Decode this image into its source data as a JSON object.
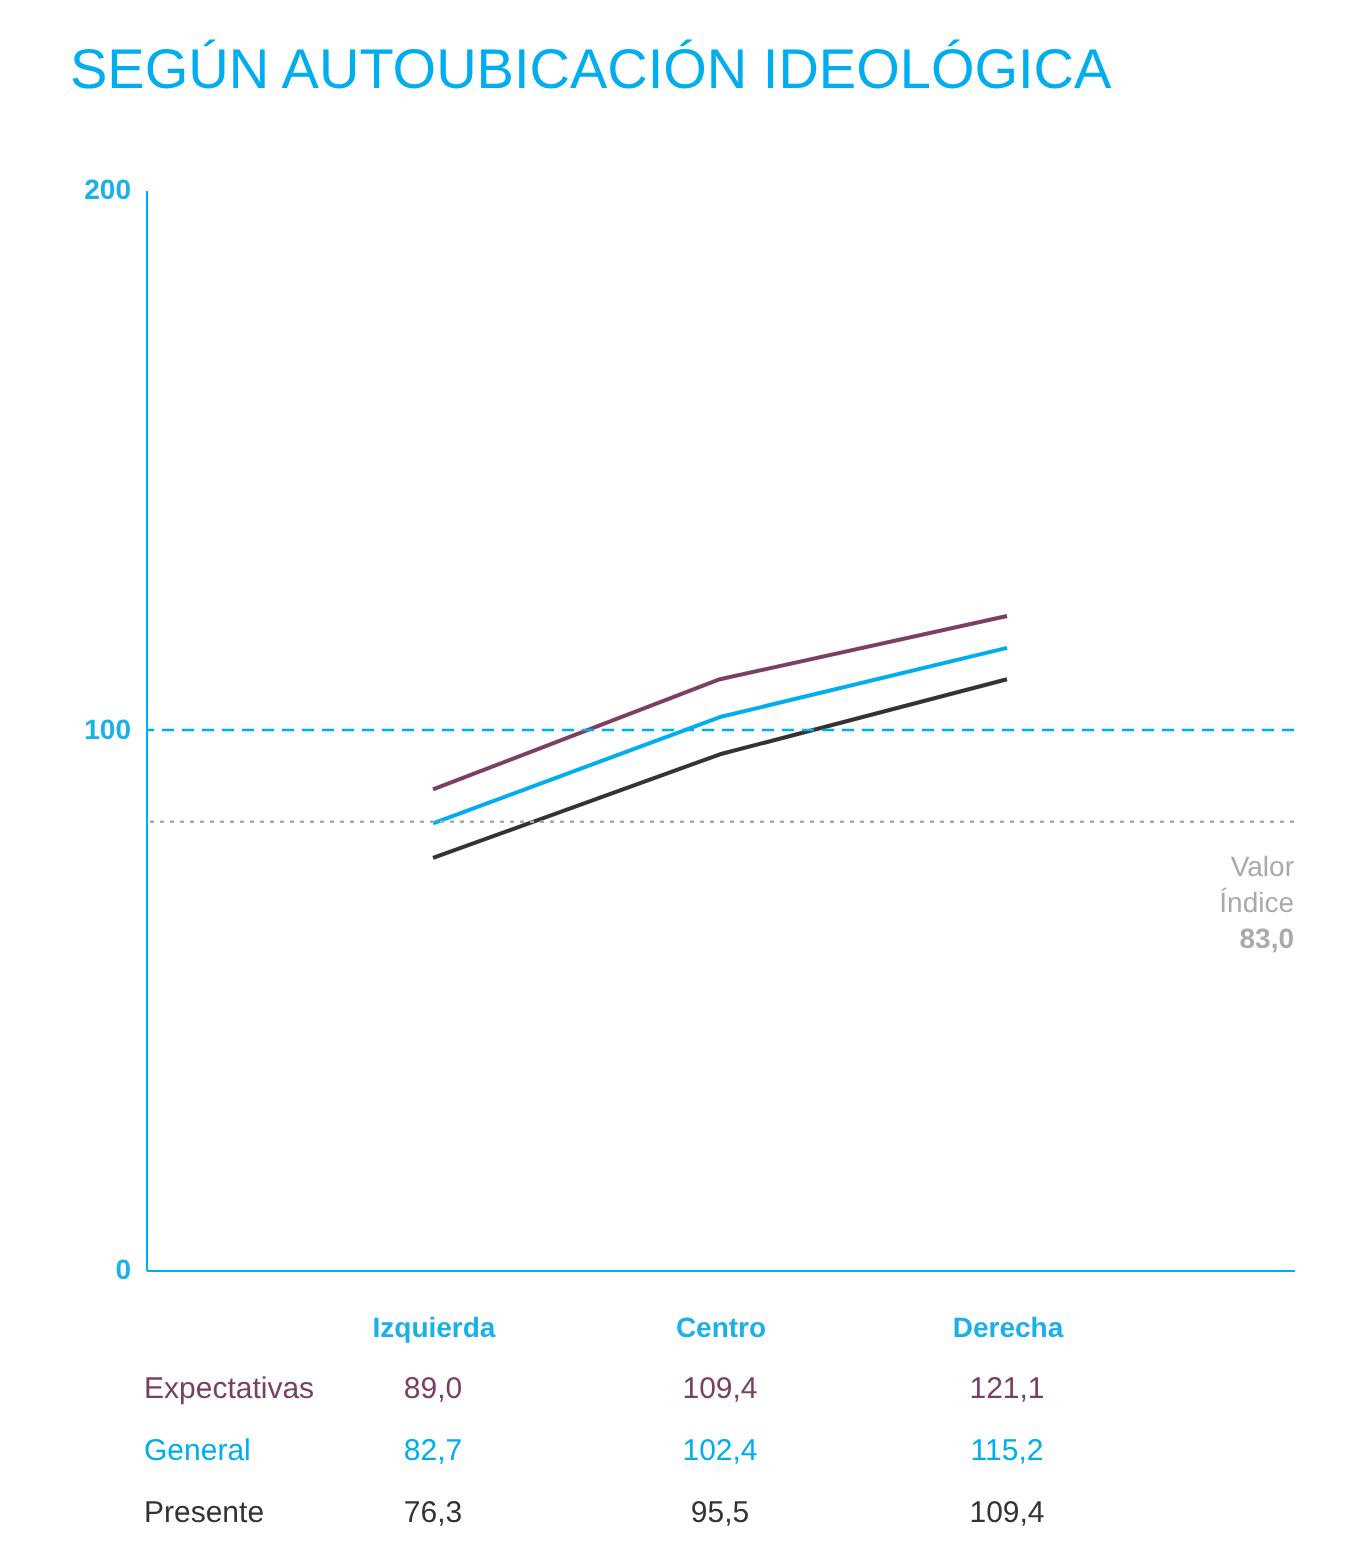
{
  "chart_data": {
    "type": "line",
    "title": "SEGÚN AUTOUBICACIÓN IDEOLÓGICA",
    "categories": [
      "Izquierda",
      "Centro",
      "Derecha"
    ],
    "series": [
      {
        "name": "Expectativas",
        "color": "#7b3f63",
        "values": [
          89.0,
          109.4,
          121.1
        ],
        "value_labels": [
          "89,0",
          "109,4",
          "121,1"
        ]
      },
      {
        "name": "General",
        "color": "#00aeef",
        "values": [
          82.7,
          102.4,
          115.2
        ],
        "value_labels": [
          "82,7",
          "102,4",
          "115,2"
        ]
      },
      {
        "name": "Presente",
        "color": "#333333",
        "values": [
          76.3,
          95.5,
          109.4
        ],
        "value_labels": [
          "76,3",
          "95,5",
          "109,4"
        ]
      }
    ],
    "ylim": [
      0,
      200
    ],
    "yticks": [
      0,
      100,
      200
    ],
    "grid": false,
    "marker": "none",
    "line_style": "solid",
    "ref_lines": [
      {
        "axis": "y",
        "value": 100,
        "color": "#00aeef",
        "line_style": "dashed"
      },
      {
        "axis": "y",
        "value": 83.0,
        "label": "Valor Índice 83,0",
        "color": "#aaaaaa",
        "line_style": "dotted"
      }
    ]
  }
}
